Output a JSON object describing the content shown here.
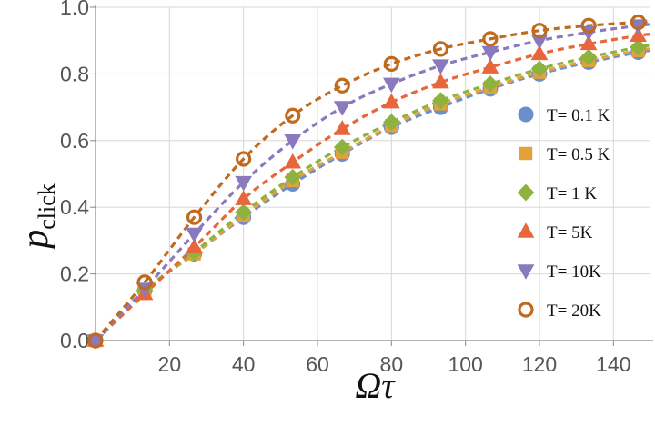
{
  "chart_data": {
    "type": "scatter",
    "title": "",
    "xlabel": "Ωτ",
    "ylabel_main": "p",
    "ylabel_sub": "click",
    "xlim": [
      0,
      150
    ],
    "ylim": [
      0,
      1.0
    ],
    "xticks": [
      20,
      40,
      60,
      80,
      100,
      120,
      140
    ],
    "yticks": [
      0.0,
      0.2,
      0.4,
      0.6,
      0.8,
      1.0
    ],
    "xtick_labels": [
      "20",
      "40",
      "60",
      "80",
      "100",
      "120",
      "140"
    ],
    "ytick_labels": [
      "0.0",
      "0.2",
      "0.4",
      "0.6",
      "0.8",
      "1.0"
    ],
    "grid": true,
    "legend_position": "right",
    "x": [
      0,
      13.3,
      26.7,
      40,
      53.3,
      66.7,
      80,
      93.3,
      106.7,
      120,
      133.3,
      146.7
    ],
    "series": [
      {
        "name": "T= 0.1 K",
        "marker": "circle",
        "color": "#6b8fcb",
        "values": [
          0.0,
          0.15,
          0.26,
          0.37,
          0.47,
          0.56,
          0.64,
          0.7,
          0.755,
          0.8,
          0.835,
          0.865
        ]
      },
      {
        "name": "T= 0.5 K",
        "marker": "square",
        "color": "#e2a23a",
        "values": [
          0.0,
          0.15,
          0.26,
          0.375,
          0.48,
          0.565,
          0.645,
          0.71,
          0.76,
          0.805,
          0.84,
          0.87
        ]
      },
      {
        "name": "T= 1 K",
        "marker": "diamond",
        "color": "#8db33e",
        "values": [
          0.0,
          0.15,
          0.265,
          0.385,
          0.49,
          0.58,
          0.655,
          0.72,
          0.77,
          0.815,
          0.85,
          0.88
        ]
      },
      {
        "name": "T= 5K",
        "marker": "triangle-up",
        "color": "#e8663b",
        "values": [
          0.0,
          0.14,
          0.28,
          0.425,
          0.535,
          0.635,
          0.715,
          0.775,
          0.82,
          0.86,
          0.89,
          0.915
        ]
      },
      {
        "name": "T= 10K",
        "marker": "triangle-down",
        "color": "#8a79bc",
        "values": [
          0.0,
          0.155,
          0.32,
          0.475,
          0.6,
          0.7,
          0.77,
          0.825,
          0.865,
          0.9,
          0.925,
          0.945
        ]
      },
      {
        "name": "T= 20K",
        "marker": "open-circle",
        "color": "#c06a1e",
        "values": [
          0.0,
          0.175,
          0.37,
          0.545,
          0.675,
          0.765,
          0.83,
          0.875,
          0.905,
          0.93,
          0.945,
          0.955
        ]
      }
    ]
  }
}
